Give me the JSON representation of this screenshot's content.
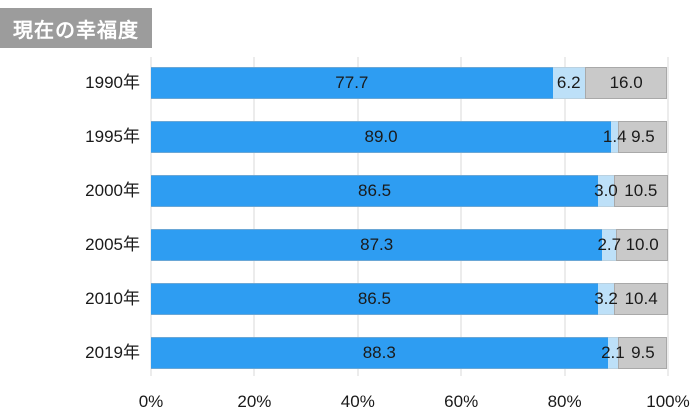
{
  "header": {
    "title": "現在の幸福度"
  },
  "colors": {
    "accent_blue": "#2E9DF2",
    "light_blue": "#BDE0F8",
    "gray_segment": "#C9C9C9",
    "gray_segment_border": "#A9A9A9",
    "gridline": "#D9D9D9",
    "title_bg": "#9C9C9C",
    "title_text": "#FFFFFF",
    "text": "#1A1A1A"
  },
  "chart_data": {
    "type": "bar",
    "orientation": "horizontal",
    "stacked": true,
    "title": "現在の幸福度",
    "categories": [
      "1990年",
      "1995年",
      "2000年",
      "2005年",
      "2010年",
      "2019年"
    ],
    "series": [
      {
        "name": "blue-segment",
        "color": "#2E9DF2",
        "values": [
          77.7,
          89.0,
          86.5,
          87.3,
          86.5,
          88.3
        ],
        "labels": [
          "77.7",
          "89.0",
          "86.5",
          "87.3",
          "86.5",
          "88.3"
        ]
      },
      {
        "name": "light-blue-segment",
        "color": "#BDE0F8",
        "values": [
          6.2,
          1.4,
          3.0,
          2.7,
          3.2,
          2.1
        ],
        "labels": [
          "6.2",
          "1.4",
          "3.0",
          "2.7",
          "3.2",
          "2.1"
        ]
      },
      {
        "name": "gray-segment",
        "color": "#C9C9C9",
        "values": [
          16.0,
          9.5,
          10.5,
          10.0,
          10.4,
          9.5
        ],
        "labels": [
          "16.0",
          "9.5",
          "10.5",
          "10.0",
          "10.4",
          "9.5"
        ]
      }
    ],
    "x_ticks": [
      "0%",
      "20%",
      "40%",
      "60%",
      "80%",
      "100%"
    ],
    "xlim": [
      0,
      100
    ],
    "grid": true,
    "legend": "none"
  }
}
